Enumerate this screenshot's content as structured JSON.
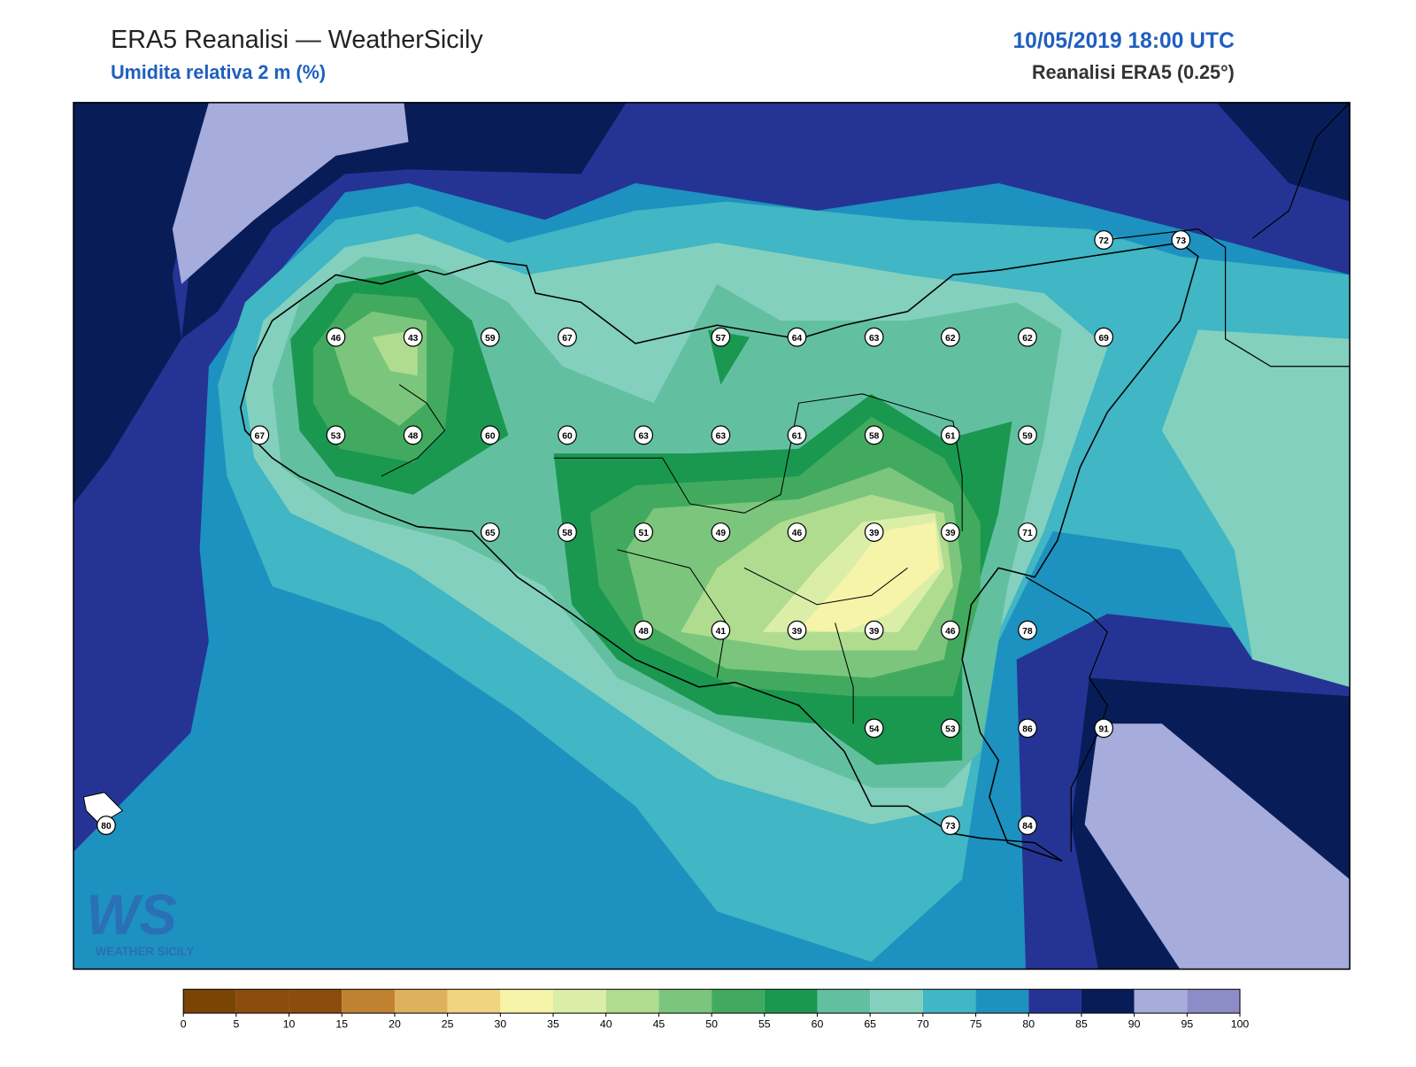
{
  "header": {
    "title": "ERA5 Reanalisi — WeatherSicily",
    "subtitle": "Umidita relativa 2 m (%)",
    "date": "10/05/2019 18:00 UTC",
    "product": "Reanalisi ERA5 (0.25°)"
  },
  "logo": {
    "mark": "WS",
    "text": "WEATHER SICILY"
  },
  "stations": [
    46,
    43,
    59,
    67,
    57,
    64,
    63,
    62,
    62,
    69,
    72,
    73,
    67,
    53,
    48,
    60,
    60,
    63,
    63,
    61,
    58,
    61,
    59,
    65,
    58,
    51,
    49,
    46,
    39,
    39,
    71,
    48,
    41,
    39,
    39,
    46,
    78,
    54,
    53,
    86,
    91,
    80,
    73,
    84
  ],
  "colorbar": {
    "ticks": [
      0,
      5,
      10,
      15,
      20,
      25,
      30,
      35,
      40,
      45,
      50,
      55,
      60,
      65,
      70,
      75,
      80,
      85,
      90,
      95,
      100
    ],
    "colors": [
      "#7a4406",
      "#8c4c0c",
      "#8c4c0c",
      "#c08230",
      "#dfb15f",
      "#f0d480",
      "#f6f4a8",
      "#dbeea8",
      "#b0dc90",
      "#7bc67c",
      "#42aa5e",
      "#1a9850",
      "#62c0a0",
      "#84d0be",
      "#41b6c4",
      "#1d91c0",
      "#253494",
      "#081d58",
      "#a6acdb",
      "#8c8cc8"
    ]
  }
}
